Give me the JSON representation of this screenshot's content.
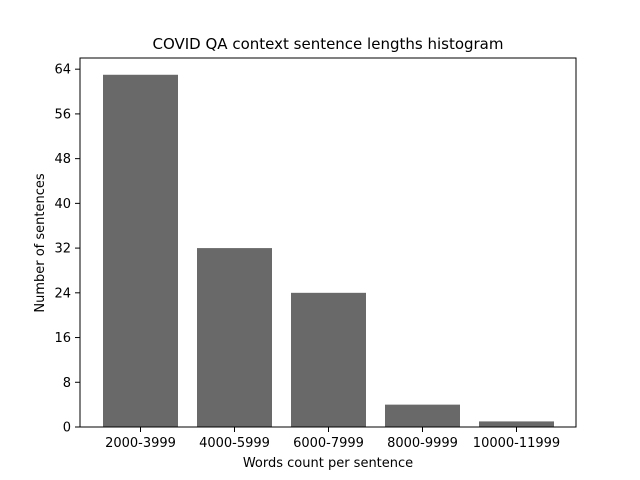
{
  "chart_data": {
    "type": "bar",
    "title": "COVID QA context sentence lengths histogram",
    "xlabel": "Words count per sentence",
    "ylabel": "Number of sentences",
    "categories": [
      "2000-3999",
      "4000-5999",
      "6000-7999",
      "8000-9999",
      "10000-11999"
    ],
    "values": [
      63,
      32,
      24,
      4,
      1
    ],
    "yticks": [
      0,
      8,
      16,
      24,
      32,
      40,
      48,
      56,
      64
    ],
    "ylim": [
      0,
      66
    ],
    "bar_color": "#696969",
    "grid": false,
    "legend": "none"
  }
}
